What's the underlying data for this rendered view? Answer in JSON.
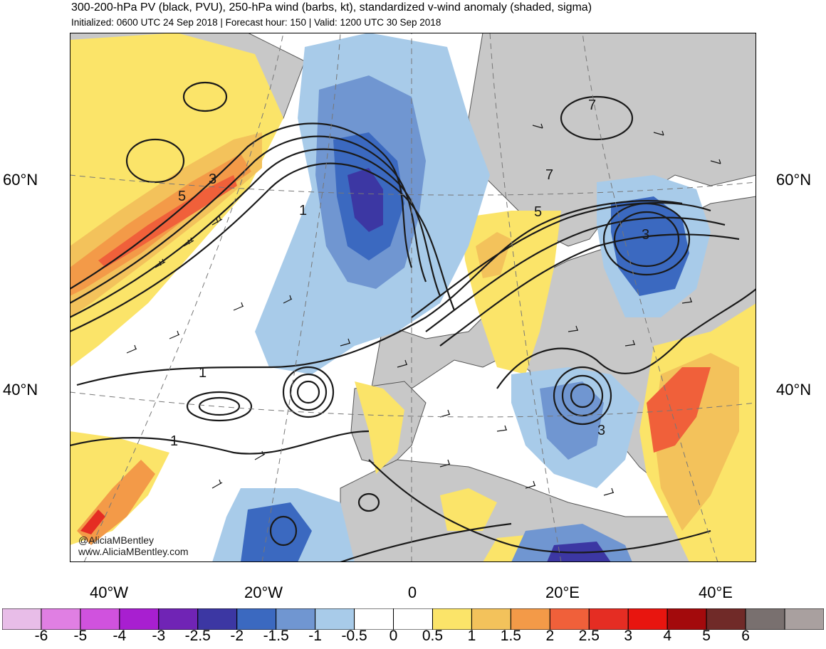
{
  "title": "300-200-hPa PV (black, PVU), 250-hPa wind (barbs, kt), standardized v-wind anomaly (shaded, sigma)",
  "subtitle": "Initialized: 0600 UTC 24 Sep 2018 | Forecast hour: 150 | Valid: 1200 UTC 30 Sep 2018",
  "lat_labels": {
    "n60": "60°N",
    "n40": "40°N"
  },
  "lon_labels": [
    "40°W",
    "20°W",
    "0",
    "20°E",
    "40°E"
  ],
  "credits": {
    "handle": "@AliciaMBentley",
    "site": "www.AliciaMBentley.com"
  },
  "contour_labels": [
    "7",
    "7",
    "5",
    "3",
    "5",
    "1",
    "3",
    "1",
    "1",
    "3"
  ],
  "colorbar": {
    "labels": [
      "-6",
      "-5",
      "-4",
      "-3",
      "-2.5",
      "-2",
      "-1.5",
      "-1",
      "-0.5",
      "0",
      "0.5",
      "1",
      "1.5",
      "2",
      "2.5",
      "3",
      "4",
      "5",
      "6"
    ],
    "colors": [
      "#e8bde8",
      "#e07fe3",
      "#d052de",
      "#a81fd0",
      "#7024b5",
      "#3c37a3",
      "#3b69c0",
      "#7096d1",
      "#a8cbe9",
      "#ffffff",
      "#ffffff",
      "#fbe469",
      "#f3c25b",
      "#f39a48",
      "#f0603a",
      "#e52d23",
      "#e8150f",
      "#a30a0c",
      "#702a28",
      "#79706f",
      "#a9a09f"
    ]
  },
  "map_colors": {
    "land": "#c8c8c8",
    "coast": "#555555",
    "contour": "#1a1a1a"
  }
}
